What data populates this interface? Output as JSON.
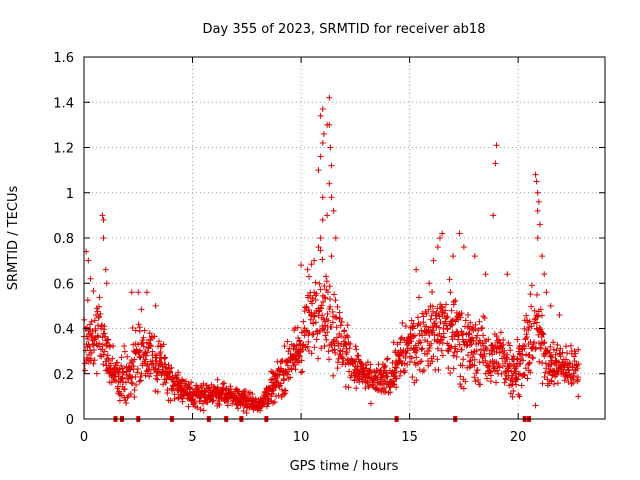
{
  "chart_data": {
    "type": "scatter",
    "title": "Day 355 of 2023, SRMTID for receiver ab18",
    "xlabel": "GPS time / hours",
    "ylabel": "SRMTID / TECUs",
    "xlim": [
      0,
      24
    ],
    "ylim": [
      0,
      1.6
    ],
    "grid": true,
    "marker": "+",
    "color": "#e00000",
    "xticks": [
      {
        "value": 0,
        "label": "0"
      },
      {
        "value": 5,
        "label": "5"
      },
      {
        "value": 10,
        "label": "10"
      },
      {
        "value": 15,
        "label": "15"
      },
      {
        "value": 20,
        "label": "20"
      }
    ],
    "yticks": [
      {
        "value": 0,
        "label": "0"
      },
      {
        "value": 0.2,
        "label": "0.2"
      },
      {
        "value": 0.4,
        "label": "0.4"
      },
      {
        "value": 0.6,
        "label": "0.6"
      },
      {
        "value": 0.8,
        "label": "0.8"
      },
      {
        "value": 1.0,
        "label": "1"
      },
      {
        "value": 1.2,
        "label": "1.2"
      },
      {
        "value": 1.4,
        "label": "1.4"
      },
      {
        "value": 1.6,
        "label": "1.6"
      }
    ],
    "profile": [
      {
        "x": 0.0,
        "base": 0.32,
        "spread": 0.22
      },
      {
        "x": 0.7,
        "base": 0.4,
        "spread": 0.28
      },
      {
        "x": 1.3,
        "base": 0.22,
        "spread": 0.16
      },
      {
        "x": 2.0,
        "base": 0.18,
        "spread": 0.2
      },
      {
        "x": 2.7,
        "base": 0.3,
        "spread": 0.22
      },
      {
        "x": 3.5,
        "base": 0.25,
        "spread": 0.18
      },
      {
        "x": 4.2,
        "base": 0.16,
        "spread": 0.1
      },
      {
        "x": 5.0,
        "base": 0.1,
        "spread": 0.08
      },
      {
        "x": 6.0,
        "base": 0.11,
        "spread": 0.08
      },
      {
        "x": 7.0,
        "base": 0.1,
        "spread": 0.07
      },
      {
        "x": 8.0,
        "base": 0.06,
        "spread": 0.05
      },
      {
        "x": 9.0,
        "base": 0.18,
        "spread": 0.12
      },
      {
        "x": 10.0,
        "base": 0.32,
        "spread": 0.2
      },
      {
        "x": 10.8,
        "base": 0.55,
        "spread": 0.35
      },
      {
        "x": 11.5,
        "base": 0.4,
        "spread": 0.3
      },
      {
        "x": 12.3,
        "base": 0.25,
        "spread": 0.15
      },
      {
        "x": 13.2,
        "base": 0.16,
        "spread": 0.1
      },
      {
        "x": 14.0,
        "base": 0.18,
        "spread": 0.12
      },
      {
        "x": 14.8,
        "base": 0.3,
        "spread": 0.2
      },
      {
        "x": 15.8,
        "base": 0.38,
        "spread": 0.24
      },
      {
        "x": 17.0,
        "base": 0.4,
        "spread": 0.28
      },
      {
        "x": 18.0,
        "base": 0.3,
        "spread": 0.22
      },
      {
        "x": 19.0,
        "base": 0.28,
        "spread": 0.18
      },
      {
        "x": 19.9,
        "base": 0.22,
        "spread": 0.16
      },
      {
        "x": 20.8,
        "base": 0.4,
        "spread": 0.3
      },
      {
        "x": 21.5,
        "base": 0.24,
        "spread": 0.14
      },
      {
        "x": 22.8,
        "base": 0.22,
        "spread": 0.14
      }
    ],
    "extra_points": [
      [
        0.1,
        0.74
      ],
      [
        0.2,
        0.7
      ],
      [
        0.3,
        0.62
      ],
      [
        0.85,
        0.9
      ],
      [
        0.9,
        0.88
      ],
      [
        0.9,
        0.8
      ],
      [
        1.0,
        0.66
      ],
      [
        1.05,
        0.6
      ],
      [
        2.2,
        0.56
      ],
      [
        2.5,
        0.56
      ],
      [
        2.9,
        0.56
      ],
      [
        3.3,
        0.5
      ],
      [
        10.0,
        0.68
      ],
      [
        10.3,
        0.66
      ],
      [
        10.6,
        0.7
      ],
      [
        10.8,
        0.76
      ],
      [
        10.9,
        0.8
      ],
      [
        11.0,
        0.88
      ],
      [
        11.0,
        0.98
      ],
      [
        10.8,
        1.1
      ],
      [
        10.9,
        1.16
      ],
      [
        11.0,
        1.22
      ],
      [
        11.05,
        1.26
      ],
      [
        10.9,
        1.34
      ],
      [
        11.0,
        1.37
      ],
      [
        11.3,
        1.42
      ],
      [
        11.2,
        1.3
      ],
      [
        11.3,
        1.3
      ],
      [
        11.35,
        1.2
      ],
      [
        11.4,
        1.12
      ],
      [
        11.3,
        1.04
      ],
      [
        11.4,
        0.98
      ],
      [
        11.5,
        0.92
      ],
      [
        11.6,
        0.8
      ],
      [
        11.2,
        0.9
      ],
      [
        11.4,
        0.72
      ],
      [
        15.3,
        0.66
      ],
      [
        15.9,
        0.6
      ],
      [
        16.1,
        0.7
      ],
      [
        16.3,
        0.76
      ],
      [
        16.4,
        0.8
      ],
      [
        16.5,
        0.82
      ],
      [
        17.0,
        0.72
      ],
      [
        17.3,
        0.82
      ],
      [
        17.5,
        0.76
      ],
      [
        18.0,
        0.72
      ],
      [
        18.5,
        0.64
      ],
      [
        18.85,
        0.9
      ],
      [
        18.95,
        1.13
      ],
      [
        19.0,
        1.21
      ],
      [
        20.8,
        1.08
      ],
      [
        20.85,
        1.05
      ],
      [
        20.9,
        1.0
      ],
      [
        20.95,
        0.96
      ],
      [
        20.9,
        0.92
      ],
      [
        21.0,
        0.86
      ],
      [
        20.9,
        0.8
      ],
      [
        21.1,
        0.72
      ],
      [
        21.2,
        0.64
      ],
      [
        21.3,
        0.56
      ],
      [
        21.5,
        0.5
      ],
      [
        20.8,
        0.06
      ],
      [
        19.5,
        0.64
      ],
      [
        21.9,
        0.46
      ]
    ],
    "zero_markers": [
      1.45,
      1.75,
      2.5,
      4.05,
      5.75,
      6.55,
      7.25,
      8.4,
      14.4,
      17.1,
      20.3,
      20.5
    ]
  }
}
